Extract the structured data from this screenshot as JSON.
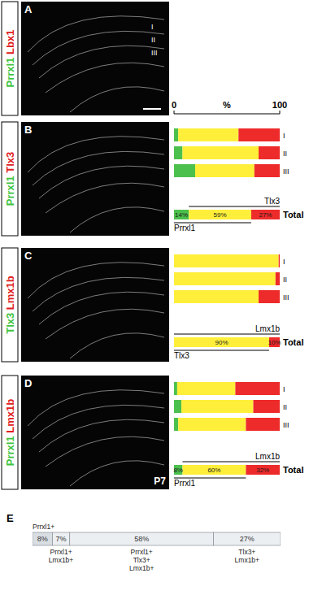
{
  "figure": {
    "panels": [
      {
        "letter": "A",
        "stains": [
          {
            "text": "Prrxl1",
            "color": "#3ec43e"
          },
          {
            "text": "Lbx1",
            "color": "#e02020"
          }
        ],
        "regions": [
          "I",
          "II",
          "III"
        ]
      },
      {
        "letter": "B",
        "stains": [
          {
            "text": "Prrxl1",
            "color": "#3ec43e"
          },
          {
            "text": "Tlx3",
            "color": "#e02020"
          }
        ]
      },
      {
        "letter": "C",
        "stains": [
          {
            "text": "Tlx3",
            "color": "#3ec43e"
          },
          {
            "text": "Lmx1b",
            "color": "#e02020"
          }
        ]
      },
      {
        "letter": "D",
        "stains": [
          {
            "text": "Prrxl1",
            "color": "#3ec43e"
          },
          {
            "text": "Lmx1b",
            "color": "#e02020"
          }
        ],
        "age": "P7"
      },
      {
        "letter": "E"
      }
    ]
  },
  "chart_data": [
    {
      "type": "bar",
      "orientation": "horizontal",
      "stacked": true,
      "categories": [
        "I",
        "II",
        "III"
      ],
      "series": [
        {
          "color": "#4cc04c",
          "values": [
            4,
            8,
            20
          ]
        },
        {
          "color": "#ffef3a",
          "values": [
            57,
            72,
            56
          ]
        },
        {
          "color": "#ee2b2b",
          "values": [
            39,
            20,
            24
          ]
        }
      ],
      "xlim": [
        0,
        100
      ],
      "xticks": [
        0,
        100
      ],
      "x_label": "%"
    },
    {
      "type": "bar",
      "orientation": "horizontal",
      "stacked": true,
      "categories": [
        "Total"
      ],
      "data_labels": true,
      "series": [
        {
          "color": "#4cc04c",
          "values": [
            14
          ],
          "value_labels": [
            "14%"
          ]
        },
        {
          "color": "#ffef3a",
          "values": [
            59
          ],
          "value_labels": [
            "59%"
          ]
        },
        {
          "color": "#ee2b2b",
          "values": [
            27
          ],
          "value_labels": [
            "27%"
          ]
        }
      ],
      "xlim": [
        0,
        100
      ],
      "top_label": "Tlx3",
      "bottom_label": "Prrxl1"
    },
    {
      "type": "bar",
      "orientation": "horizontal",
      "stacked": true,
      "categories": [
        "I",
        "II",
        "III"
      ],
      "series": [
        {
          "color": "#ffef3a",
          "values": [
            99,
            96,
            80
          ]
        },
        {
          "color": "#ee2b2b",
          "values": [
            1,
            4,
            20
          ]
        }
      ],
      "xlim": [
        0,
        100
      ]
    },
    {
      "type": "bar",
      "orientation": "horizontal",
      "stacked": true,
      "categories": [
        "Total"
      ],
      "data_labels": true,
      "series": [
        {
          "color": "#ffef3a",
          "values": [
            90
          ],
          "value_labels": [
            "90%"
          ]
        },
        {
          "color": "#ee2b2b",
          "values": [
            10
          ],
          "value_labels": [
            "10%"
          ]
        }
      ],
      "xlim": [
        0,
        100
      ],
      "top_label": "Lmx1b",
      "bottom_label": "Tlx3"
    },
    {
      "type": "bar",
      "orientation": "horizontal",
      "stacked": true,
      "categories": [
        "I",
        "II",
        "III"
      ],
      "series": [
        {
          "color": "#4cc04c",
          "values": [
            3,
            7,
            4
          ]
        },
        {
          "color": "#ffef3a",
          "values": [
            55,
            68,
            64
          ]
        },
        {
          "color": "#ee2b2b",
          "values": [
            42,
            25,
            32
          ]
        }
      ],
      "xlim": [
        0,
        100
      ]
    },
    {
      "type": "bar",
      "orientation": "horizontal",
      "stacked": true,
      "categories": [
        "Total"
      ],
      "data_labels": true,
      "series": [
        {
          "color": "#4cc04c",
          "values": [
            8
          ],
          "value_labels": [
            "8%"
          ]
        },
        {
          "color": "#ffef3a",
          "values": [
            60
          ],
          "value_labels": [
            "60%"
          ]
        },
        {
          "color": "#ee2b2b",
          "values": [
            32
          ],
          "value_labels": [
            "32%"
          ]
        }
      ],
      "xlim": [
        0,
        100
      ],
      "top_label": "Lmx1b",
      "bottom_label": "Prrxl1"
    },
    {
      "type": "bar",
      "orientation": "horizontal",
      "stacked": true,
      "categories": [
        null
      ],
      "data_labels": true,
      "series": [
        {
          "name": "Prrxl1+",
          "color": "#d9dee3",
          "values": [
            8
          ],
          "value_labels": [
            "8%"
          ]
        },
        {
          "name": "Prrxl1+ Lmx1b+",
          "color": "#eceff2",
          "values": [
            7
          ],
          "value_labels": [
            "7%"
          ]
        },
        {
          "name": "Prrxl1+ Tlx3+ Lmx1b+",
          "color": "#eceff2",
          "values": [
            58
          ],
          "value_labels": [
            "58%"
          ]
        },
        {
          "name": "Tlx3+ Lmx1b+",
          "color": "#eceff2",
          "values": [
            27
          ],
          "value_labels": [
            "27%"
          ]
        }
      ],
      "xlim": [
        0,
        100
      ]
    }
  ]
}
